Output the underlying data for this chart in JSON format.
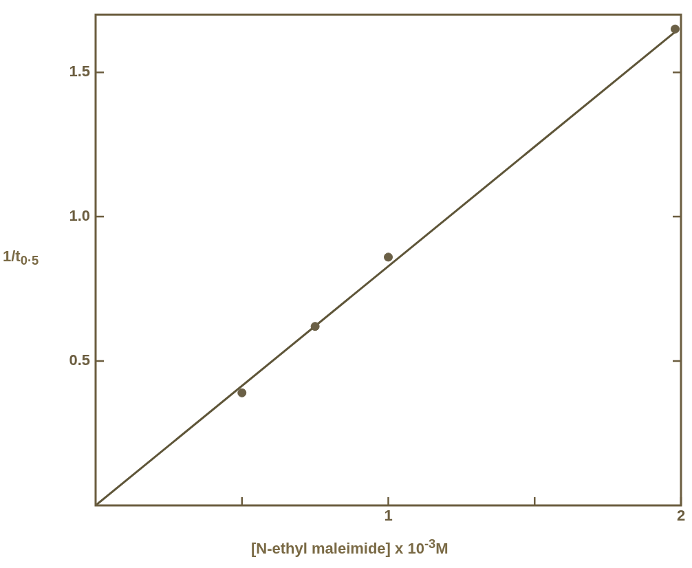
{
  "chart_data": {
    "type": "scatter",
    "xlabel": "[N-ethyl maleimide] x 10$^{-3}$M",
    "ylabel": "1/t$_{0·5}$",
    "xlim": [
      0,
      2
    ],
    "ylim": [
      0,
      1.7
    ],
    "xticks": [
      {
        "value": 0.5,
        "label": null
      },
      1,
      {
        "value": 1.5,
        "label": null
      },
      2
    ],
    "yticks": [
      0.5,
      {
        "value": 1,
        "label": "1.0"
      },
      1.5
    ],
    "grid": false,
    "legend": false,
    "marker": "circle",
    "series": [
      {
        "color": "#6b6046",
        "x": [
          0.5,
          0.75,
          1.0,
          1.98
        ],
        "values": [
          0.39,
          0.62,
          0.86,
          1.65
        ]
      },
      {
        "type": "line",
        "color": "#5e5538",
        "x": [
          0,
          1.98
        ],
        "values": [
          0,
          1.64
        ],
        "marker": "none",
        "line_style": "solid"
      }
    ]
  }
}
